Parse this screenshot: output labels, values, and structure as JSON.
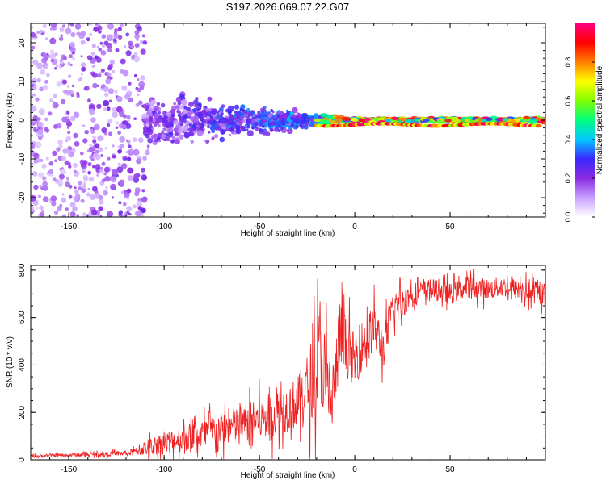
{
  "title": "S197.2026.069.07.22.G07",
  "chart_data": [
    {
      "type": "heatmap",
      "name": "spectrogram",
      "xlabel": "Height of straight line (km)",
      "ylabel": "Frequency (Hz)",
      "xlim": [
        -170,
        100
      ],
      "ylim": [
        -25,
        25
      ],
      "xticks": [
        -150,
        -100,
        -50,
        0,
        50
      ],
      "yticks": [
        -20,
        -10,
        0,
        10,
        20
      ],
      "grid": false,
      "colorbar": {
        "label": "Normalized spectral amplitude",
        "range": [
          0.0,
          1.0
        ],
        "ticks": [
          0.0,
          0.2,
          0.4,
          0.6,
          0.8
        ],
        "tick_labels": [
          "0.0",
          "0.2",
          "0.4",
          "0.6",
          "0.8"
        ],
        "colors": [
          "#ffffff",
          "#c8a0ff",
          "#8a2be2",
          "#3c28ff",
          "#00c8ff",
          "#00ff80",
          "#80ff00",
          "#ffff00",
          "#ff8000",
          "#ff0000",
          "#ff0080"
        ]
      },
      "description_points": [
        {
          "x": -160,
          "freq_spread": 25,
          "amplitude": 0.15
        },
        {
          "x": -110,
          "freq_spread": 12,
          "amplitude": 0.2
        },
        {
          "x": -60,
          "freq_spread": 6,
          "amplitude": 0.3
        },
        {
          "x": -25,
          "freq_spread": 3,
          "amplitude": 0.45
        },
        {
          "x": 0,
          "freq_spread": 1,
          "amplitude": 0.9
        },
        {
          "x": 50,
          "freq_spread": 1,
          "amplitude": 0.75
        },
        {
          "x": 95,
          "freq_spread": 1,
          "amplitude": 0.9
        }
      ]
    },
    {
      "type": "line",
      "name": "snr",
      "xlabel": "Height of straight line (km)",
      "ylabel": "SNR (10 * v/v)",
      "xlim": [
        -170,
        100
      ],
      "ylim": [
        0,
        820
      ],
      "xticks": [
        -150,
        -100,
        -50,
        0,
        50
      ],
      "yticks": [
        0,
        200,
        400,
        600,
        800
      ],
      "grid": false,
      "series": [
        {
          "name": "SNR",
          "color": "#ee2020",
          "x": [
            -170,
            -160,
            -150,
            -140,
            -130,
            -120,
            -115,
            -110,
            -100,
            -90,
            -80,
            -70,
            -60,
            -50,
            -40,
            -30,
            -25,
            -20,
            -18,
            -15,
            -12,
            -10,
            -8,
            -5,
            0,
            5,
            10,
            15,
            20,
            25,
            30,
            40,
            50,
            60,
            70,
            80,
            90,
            97
          ],
          "values": [
            15,
            18,
            20,
            22,
            25,
            28,
            35,
            50,
            70,
            90,
            110,
            130,
            150,
            170,
            200,
            240,
            300,
            380,
            480,
            330,
            260,
            350,
            520,
            480,
            420,
            500,
            560,
            470,
            640,
            660,
            700,
            720,
            700,
            730,
            720,
            730,
            710,
            700
          ],
          "noise": [
            8,
            8,
            10,
            10,
            12,
            14,
            20,
            40,
            60,
            70,
            80,
            90,
            100,
            110,
            120,
            140,
            180,
            260,
            300,
            250,
            200,
            180,
            200,
            160,
            140,
            130,
            120,
            110,
            90,
            80,
            60,
            55,
            55,
            55,
            55,
            55,
            55,
            55
          ]
        }
      ]
    }
  ]
}
